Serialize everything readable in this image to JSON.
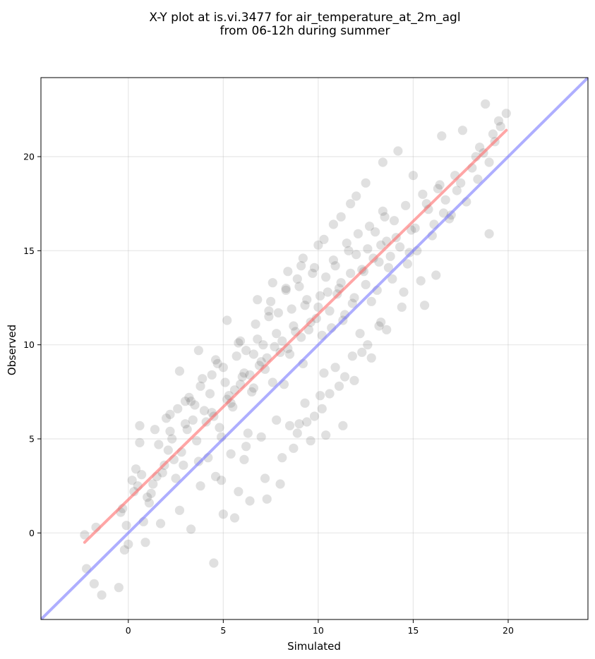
{
  "chart_data": {
    "type": "scatter",
    "title_line1": "X-Y plot at is.vi.3477 for air_temperature_at_2m_agl",
    "title_line2": "from 06-12h during summer",
    "xlabel": "Simulated",
    "ylabel": "Observed",
    "xlim": [
      -4.6,
      24.2
    ],
    "ylim": [
      -4.6,
      24.2
    ],
    "xticks": [
      0,
      5,
      10,
      15,
      20
    ],
    "yticks": [
      0,
      5,
      10,
      15,
      20
    ],
    "grid": true,
    "legend": "none",
    "colors": {
      "points": "#555555",
      "fit_line": "#ff6a6a",
      "identity_line": "#7878ff"
    },
    "lines": [
      {
        "kind": "fit",
        "x": [
          -2.3,
          19.9
        ],
        "y": [
          -0.5,
          21.4
        ]
      },
      {
        "kind": "identity",
        "x": [
          -4.6,
          24.2
        ],
        "y": [
          -4.6,
          24.2
        ]
      }
    ],
    "points": {
      "x": [
        -2.3,
        -2.2,
        -1.8,
        -1.7,
        -1.4,
        -0.5,
        -0.2,
        0.0,
        -0.3,
        -0.1,
        0.3,
        -0.4,
        0.2,
        0.4,
        0.6,
        0.8,
        0.9,
        1.0,
        1.2,
        1.5,
        1.7,
        1.9,
        2.1,
        2.3,
        0.5,
        0.7,
        1.1,
        1.3,
        1.6,
        1.8,
        2.0,
        2.2,
        2.4,
        2.6,
        2.8,
        3.0,
        3.2,
        3.4,
        3.6,
        3.8,
        4.0,
        2.5,
        2.7,
        2.9,
        3.1,
        3.3,
        3.5,
        3.7,
        3.9,
        4.1,
        4.3,
        4.5,
        4.7,
        4.9,
        5.1,
        5.3,
        5.5,
        5.7,
        5.9,
        6.1,
        4.2,
        4.4,
        4.6,
        4.8,
        5.0,
        5.2,
        5.4,
        5.6,
        5.8,
        6.0,
        6.2,
        6.4,
        6.6,
        6.8,
        7.0,
        7.2,
        7.4,
        7.6,
        7.8,
        8.0,
        6.3,
        6.5,
        6.7,
        6.9,
        7.1,
        7.3,
        7.5,
        7.7,
        7.9,
        8.1,
        8.3,
        8.5,
        8.7,
        8.9,
        9.1,
        9.3,
        9.5,
        9.7,
        9.9,
        10.1,
        8.2,
        8.4,
        8.6,
        8.8,
        9.0,
        9.2,
        9.4,
        9.6,
        9.8,
        10.0,
        10.2,
        10.4,
        10.6,
        10.8,
        11.0,
        11.2,
        11.4,
        11.6,
        11.8,
        12.0,
        10.3,
        10.5,
        10.7,
        10.9,
        11.1,
        11.3,
        11.5,
        11.7,
        11.9,
        12.1,
        12.3,
        12.5,
        12.7,
        12.9,
        13.1,
        13.3,
        13.5,
        13.7,
        13.9,
        14.1,
        12.2,
        12.4,
        12.6,
        12.8,
        13.0,
        13.2,
        13.4,
        13.6,
        13.8,
        14.0,
        14.3,
        14.6,
        14.9,
        15.2,
        15.5,
        15.8,
        16.1,
        16.4,
        16.7,
        17.0,
        14.5,
        14.8,
        15.1,
        15.4,
        15.7,
        16.0,
        16.3,
        16.6,
        16.9,
        17.2,
        17.5,
        17.8,
        18.1,
        18.4,
        18.7,
        19.0,
        19.3,
        19.6,
        19.9,
        18.8,
        19.0,
        19.2,
        18.5,
        17.3,
        16.2,
        15.6,
        14.7,
        13.2,
        12.3,
        11.4,
        10.6,
        9.8,
        8.9,
        8.1,
        7.2,
        6.4,
        5.6,
        4.5,
        3.3,
        2.7,
        6.6,
        5.9,
        5.2,
        4.4,
        3.7,
        3.0,
        2.2,
        1.4,
        0.6,
        7.4,
        8.3,
        9.1,
        10.0,
        10.8,
        11.7,
        12.5,
        13.4,
        14.2,
        15.0,
        16.5,
        17.6,
        18.3,
        19.5,
        8.7,
        9.4,
        10.2,
        11.1,
        11.9,
        12.8,
        13.6,
        14.4,
        3.8,
        4.6,
        5.4,
        6.2,
        7.0,
        7.8,
        8.5,
        9.3,
        10.1,
        10.9,
        11.8,
        12.6,
        13.3,
        6.8,
        7.6,
        8.4,
        9.2,
        10.3,
        11.2,
        12.0,
        5.0,
        5.8,
        9.0,
        9.6,
        10.4,
        11.3,
        8.0,
        7.3,
        6.1,
        4.9
      ],
      "y": [
        -0.1,
        -1.9,
        -2.7,
        0.3,
        -3.3,
        -2.9,
        -0.9,
        -0.6,
        1.3,
        0.4,
        2.2,
        1.1,
        2.8,
        3.4,
        5.7,
        0.6,
        -0.5,
        1.9,
        2.1,
        3.0,
        0.5,
        3.6,
        4.4,
        5.0,
        2.5,
        3.1,
        1.6,
        2.6,
        4.7,
        3.2,
        6.1,
        5.4,
        3.9,
        6.6,
        4.3,
        5.8,
        7.2,
        6.0,
        4.9,
        7.8,
        6.5,
        2.9,
        8.6,
        3.6,
        5.5,
        7.0,
        6.8,
        3.8,
        8.2,
        5.9,
        7.4,
        6.2,
        9.0,
        5.1,
        8.0,
        7.3,
        6.7,
        9.4,
        7.9,
        8.5,
        4.0,
        6.4,
        9.2,
        5.6,
        8.8,
        7.1,
        6.9,
        7.6,
        10.1,
        8.3,
        9.7,
        8.4,
        7.7,
        10.3,
        9.1,
        8.7,
        11.5,
        8.0,
        10.6,
        9.6,
        5.3,
        7.5,
        11.1,
        8.9,
        10.0,
        9.3,
        12.3,
        9.9,
        11.7,
        10.2,
        12.9,
        9.5,
        11.0,
        13.5,
        10.4,
        12.1,
        10.8,
        13.8,
        11.4,
        12.6,
        7.9,
        9.8,
        11.9,
        10.7,
        13.1,
        9.0,
        12.4,
        11.2,
        14.1,
        12.0,
        10.5,
        13.6,
        11.8,
        14.5,
        12.7,
        13.3,
        11.6,
        15.0,
        12.2,
        14.8,
        8.5,
        12.8,
        10.9,
        14.2,
        13.0,
        11.3,
        15.4,
        13.8,
        12.5,
        15.9,
        14.0,
        13.2,
        16.3,
        14.6,
        12.9,
        15.3,
        16.8,
        14.1,
        13.5,
        15.7,
        10.6,
        13.9,
        15.1,
        12.3,
        16.0,
        14.4,
        17.1,
        15.5,
        14.7,
        16.6,
        15.2,
        17.4,
        16.1,
        15.0,
        18.0,
        17.2,
        16.4,
        18.5,
        17.7,
        16.9,
        12.8,
        14.9,
        16.2,
        13.4,
        17.5,
        15.8,
        18.3,
        17.0,
        16.7,
        19.0,
        18.6,
        17.6,
        19.4,
        18.8,
        20.2,
        19.7,
        20.8,
        21.6,
        22.3,
        22.8,
        15.9,
        21.2,
        20.5,
        18.2,
        13.7,
        12.1,
        14.3,
        11.0,
        9.6,
        8.3,
        7.4,
        6.2,
        5.3,
        4.0,
        2.9,
        1.7,
        0.8,
        -1.6,
        0.2,
        1.2,
        9.5,
        10.2,
        11.3,
        8.4,
        9.7,
        7.0,
        6.3,
        5.5,
        4.8,
        11.8,
        13.0,
        14.2,
        15.3,
        16.4,
        17.5,
        18.6,
        19.7,
        20.3,
        19.0,
        21.1,
        21.4,
        20.0,
        21.9,
        4.5,
        5.9,
        6.6,
        7.8,
        8.1,
        9.3,
        10.8,
        12.0,
        2.5,
        3.0,
        4.2,
        4.6,
        5.1,
        6.0,
        5.7,
        6.9,
        7.3,
        8.8,
        9.4,
        10.0,
        11.2,
        12.4,
        13.3,
        13.9,
        14.6,
        15.6,
        16.8,
        17.9,
        1.0,
        2.2,
        5.8,
        4.9,
        5.2,
        5.7,
        2.6,
        1.8,
        3.9,
        2.8
      ]
    }
  }
}
